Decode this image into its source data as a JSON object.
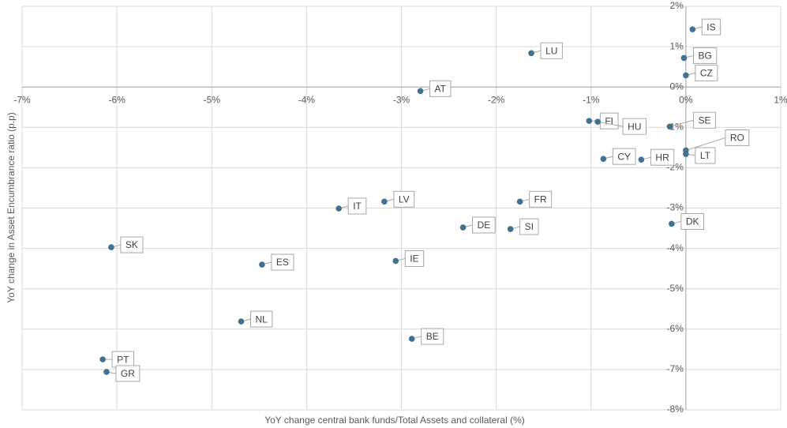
{
  "chart_data": {
    "type": "scatter",
    "xlabel": "YoY change central bank funds/Total Assets and collateral (%)",
    "ylabel": "YoY change in  Asset Encumbrance ratio (p.p)",
    "color": "#41718f",
    "grid": true,
    "xlim": [
      -7,
      1
    ],
    "xticks": [
      {
        "value": -7,
        "label": "-7%"
      },
      {
        "value": -6,
        "label": "-6%"
      },
      {
        "value": -5,
        "label": "-5%"
      },
      {
        "value": -4,
        "label": "-4%"
      },
      {
        "value": -3,
        "label": "-3%"
      },
      {
        "value": -2,
        "label": "-2%"
      },
      {
        "value": -1,
        "label": "-1%"
      },
      {
        "value": 0,
        "label": "0%"
      },
      {
        "value": 1,
        "label": "1%"
      }
    ],
    "ylim": [
      -8,
      2
    ],
    "yticks": [
      {
        "value": -8,
        "label": "-8%"
      },
      {
        "value": -7,
        "label": "-7%"
      },
      {
        "value": -6,
        "label": "-6%"
      },
      {
        "value": -5,
        "label": "-5%"
      },
      {
        "value": -4,
        "label": "-4%"
      },
      {
        "value": -3,
        "label": "-3%"
      },
      {
        "value": -2,
        "label": "-2%"
      },
      {
        "value": -1,
        "label": "-1%"
      },
      {
        "value": 0,
        "label": "0%"
      },
      {
        "value": 1,
        "label": "1%"
      },
      {
        "value": 2,
        "label": "2%"
      }
    ],
    "point_labels": [
      "IS",
      "BG",
      "CZ",
      "LU",
      "AT",
      "FI",
      "HU",
      "SE",
      "RO",
      "LT",
      "CY",
      "HR",
      "DK",
      "FR",
      "DE",
      "SI",
      "IT",
      "LV",
      "SK",
      "ES",
      "IE",
      "NL",
      "BE",
      "PT",
      "GR"
    ],
    "x": [
      0.07,
      -0.02,
      0.0,
      -1.63,
      -2.8,
      -1.02,
      -0.93,
      -0.17,
      0.0,
      0.0,
      -0.87,
      -0.47,
      -0.15,
      -1.75,
      -2.35,
      -1.85,
      -3.66,
      -3.18,
      -6.06,
      -4.47,
      -3.06,
      -4.69,
      -2.89,
      -6.15,
      -6.11
    ],
    "values": [
      1.43,
      0.72,
      0.29,
      0.84,
      -0.1,
      -0.84,
      -0.86,
      -0.98,
      -1.57,
      -1.66,
      -1.78,
      -1.8,
      -3.39,
      -2.84,
      -3.48,
      -3.52,
      -3.01,
      -2.84,
      -3.97,
      -4.4,
      -4.31,
      -5.81,
      -6.24,
      -6.75,
      -7.06
    ]
  }
}
